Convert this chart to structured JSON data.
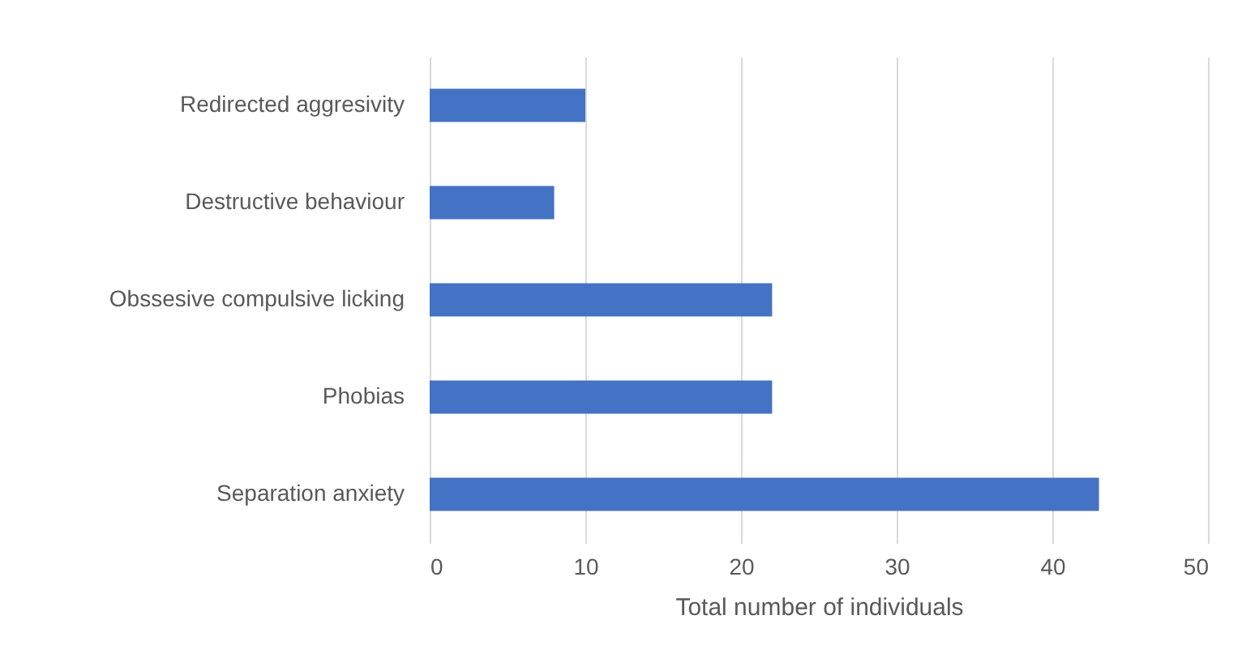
{
  "chart_data": {
    "type": "bar",
    "orientation": "horizontal",
    "xlabel": "Total number of individuals",
    "categories": [
      "Redirected aggresivity",
      "Destructive behaviour",
      "Obssesive compulsive licking",
      "Phobias",
      "Separation anxiety"
    ],
    "values": [
      10,
      8,
      22,
      22,
      43
    ],
    "color": "#4472c4",
    "xlim": [
      0,
      50
    ],
    "xticks": [
      0,
      10,
      20,
      30,
      40,
      50
    ],
    "grid": "x"
  }
}
